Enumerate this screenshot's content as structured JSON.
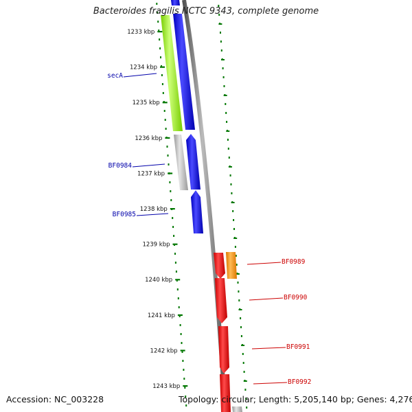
{
  "header": {
    "title": "Bacteroides fragilis NCTC 9343, complete genome"
  },
  "footer": {
    "accession": "Accession: NC_003228",
    "summary": "Topology: circular; Length: 5,205,140 bp; Genes: 4,276"
  },
  "scale": {
    "ticks": [
      "1233 kbp",
      "1234 kbp",
      "1235 kbp",
      "1236 kbp",
      "1237 kbp",
      "1238 kbp",
      "1239 kbp",
      "1240 kbp",
      "1241 kbp",
      "1242 kbp",
      "1243 kbp"
    ]
  },
  "genes": {
    "left": [
      "secA",
      "BF0984",
      "BF0985"
    ],
    "right": [
      "BF0989",
      "BF0990",
      "BF0991",
      "BF0992"
    ]
  },
  "colors": {
    "forward_label": "#0000aa",
    "reverse_label": "#cc0000",
    "blue_cds": "#0000ff",
    "red_cds": "#ff0000",
    "orange_cds": "#ff9900",
    "green_feature": "#99ee22",
    "grey_feature": "#bbbbbb",
    "dotted_ring": "#007700",
    "backbone": "#999999"
  }
}
